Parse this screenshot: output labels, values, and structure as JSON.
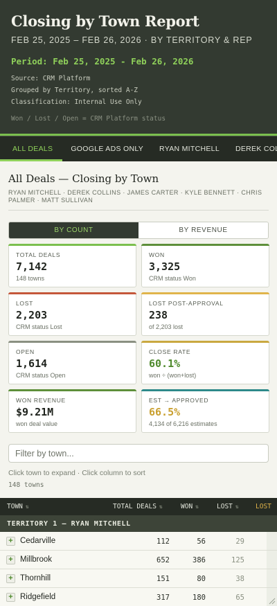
{
  "header": {
    "title": "Closing by Town Report",
    "subtitle": "FEB 25, 2025 – FEB 26, 2026  ·  BY TERRITORY & REP",
    "period": "Period: Feb 25, 2025 - Feb 26, 2026",
    "source": "Source: CRM Platform",
    "grouped": "Grouped by Territory, sorted A-Z",
    "classification": "Classification: Internal Use Only",
    "note": "Won / Lost / Open = CRM Platform status"
  },
  "tabs": [
    "ALL DEALS",
    "GOOGLE ADS ONLY",
    "RYAN MITCHELL",
    "DEREK COLLINS"
  ],
  "main": {
    "title": "All Deals — Closing by Town",
    "reps": "RYAN MITCHELL · DEREK COLLINS · JAMES CARTER · KYLE BENNETT · CHRIS PALMER · MATT SULLIVAN"
  },
  "toggle": {
    "count": "BY COUNT",
    "revenue": "BY REVENUE"
  },
  "cards": [
    {
      "label": "TOTAL DEALS",
      "value": "7,142",
      "sub": "148 towns",
      "accent": "#7bbf4e",
      "value_color": "#1f231d"
    },
    {
      "label": "WON",
      "value": "3,325",
      "sub": "CRM status Won",
      "accent": "#5e8f3a",
      "value_color": "#1f231d"
    },
    {
      "label": "LOST",
      "value": "2,203",
      "sub": "CRM status Lost",
      "accent": "#c4573a",
      "value_color": "#1f231d"
    },
    {
      "label": "LOST POST-APPROVAL",
      "value": "238",
      "sub": "of 2,203 lost",
      "accent": "#e0b44a",
      "value_color": "#1f231d"
    },
    {
      "label": "OPEN",
      "value": "1,614",
      "sub": "CRM status Open",
      "accent": "#8a9082",
      "value_color": "#1f231d"
    },
    {
      "label": "CLOSE RATE",
      "value": "60.1%",
      "sub": "won ÷ (won+lost)",
      "accent": "#c9a840",
      "value_color": "#4f8a2d"
    },
    {
      "label": "WON REVENUE",
      "value": "$9.21M",
      "sub": "won deal value",
      "accent": "#5e8f3a",
      "value_color": "#1f231d"
    },
    {
      "label": "EST → APPROVED",
      "value": "66.5%",
      "sub": "4,134 of 6,216 estimates",
      "accent": "#2e8a8a",
      "value_color": "#c9a030"
    }
  ],
  "filter": {
    "placeholder": "Filter by town..."
  },
  "hint": "Click town to expand · Click column to sort",
  "town_count": "148 towns",
  "table": {
    "columns": {
      "town": "TOWN",
      "total": "TOTAL DEALS",
      "won": "WON",
      "lost": "LOST",
      "lost_pa": "LOST"
    },
    "sort_glyph": "⇅",
    "territory": "TERRITORY 1 — RYAN MITCHELL",
    "rows": [
      {
        "town": "Cedarville",
        "total": "112",
        "won": "56",
        "lost": "29"
      },
      {
        "town": "Millbrook",
        "total": "652",
        "won": "386",
        "lost": "125"
      },
      {
        "town": "Thornhill",
        "total": "151",
        "won": "80",
        "lost": "38"
      },
      {
        "town": "Ridgefield",
        "total": "317",
        "won": "180",
        "lost": "65"
      }
    ]
  }
}
